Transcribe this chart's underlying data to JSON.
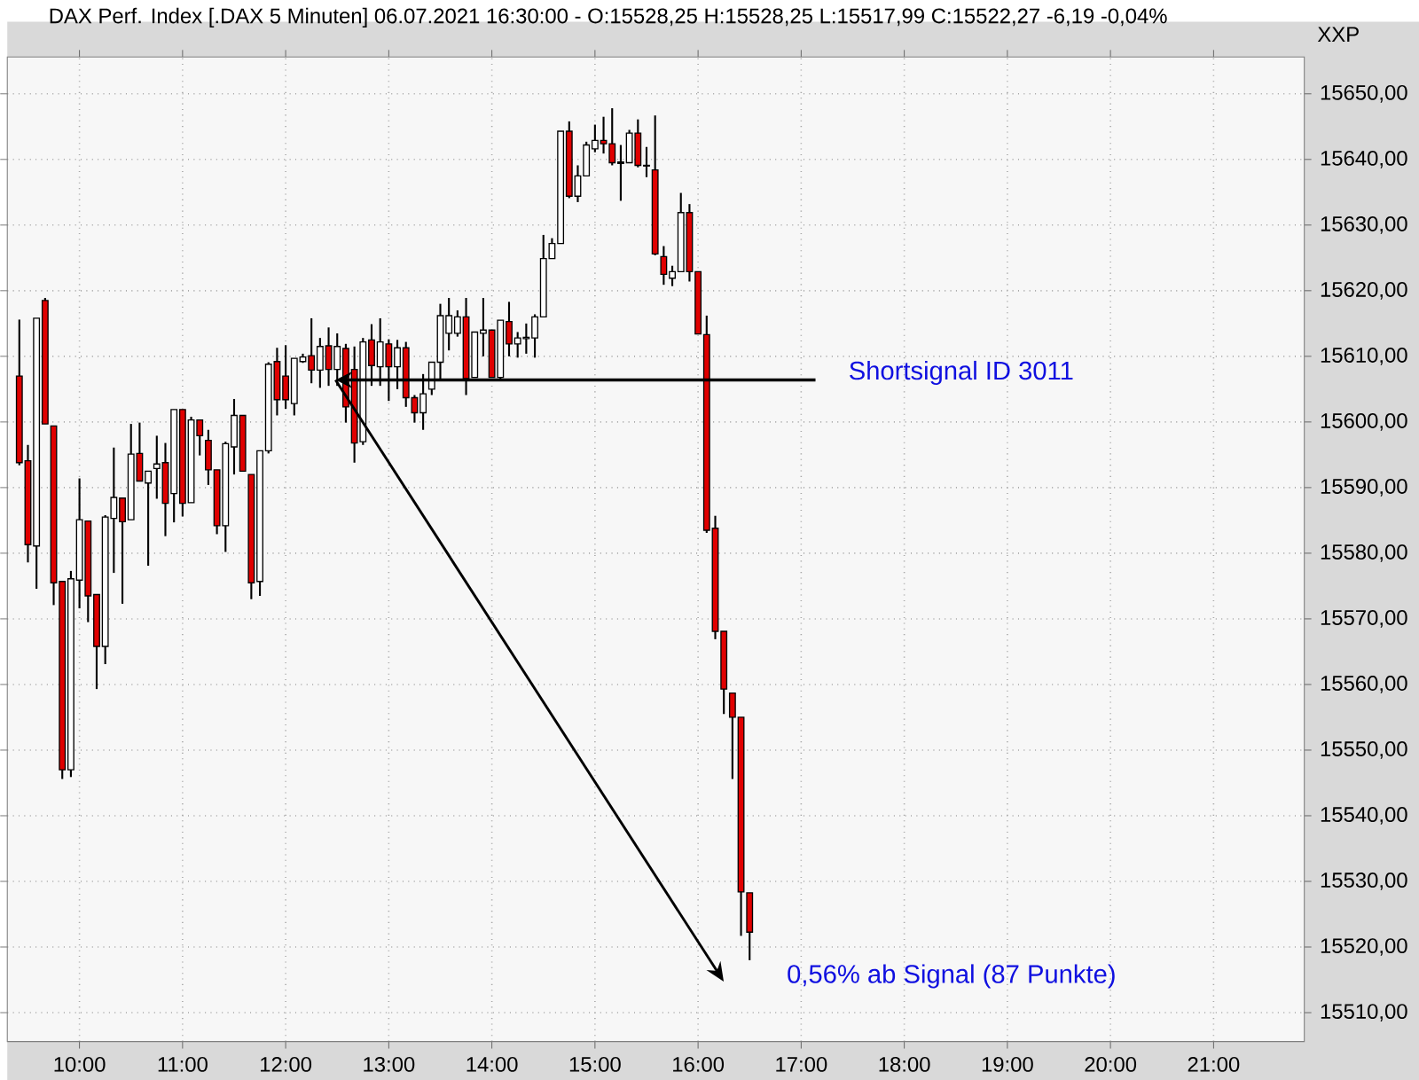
{
  "chart_data": {
    "type": "candlestick",
    "title": "DAX Perf. Index [.DAX  5 Minuten] 06.07.2021 16:30:00 - O:15528,25 H:15528,25 L:15517,99 C:15522,27 -6,19 -0,04%",
    "x": [
      9.4167,
      9.5,
      9.5833,
      9.6667,
      9.75,
      9.8333,
      9.9167,
      10.0,
      10.0833,
      10.1667,
      10.25,
      10.3333,
      10.4167,
      10.5,
      10.5833,
      10.6667,
      10.75,
      10.8333,
      10.9167,
      11.0,
      11.0833,
      11.1667,
      11.25,
      11.3333,
      11.4167,
      11.5,
      11.5833,
      11.6667,
      11.75,
      11.8333,
      11.9167,
      12.0,
      12.0833,
      12.1667,
      12.25,
      12.3333,
      12.4167,
      12.5,
      12.5833,
      12.6667,
      12.75,
      12.8333,
      12.9167,
      13.0,
      13.0833,
      13.1667,
      13.25,
      13.3333,
      13.4167,
      13.5,
      13.5833,
      13.6667,
      13.75,
      13.8333,
      13.9167,
      14.0,
      14.0833,
      14.1667,
      14.25,
      14.3333,
      14.4167,
      14.5,
      14.5833,
      14.6667,
      14.75,
      14.8333,
      14.9167,
      15.0,
      15.0833,
      15.1667,
      15.25,
      15.3333,
      15.4167,
      15.5,
      15.5833,
      15.6667,
      15.75,
      15.8333,
      15.9167,
      16.0,
      16.0833,
      16.1667,
      16.25,
      16.3333,
      16.4167,
      16.5
    ],
    "ohlc": [
      [
        15607.0,
        15615.6,
        15593.4,
        15593.8
      ],
      [
        15594.1,
        15596.5,
        15578.6,
        15581.3
      ],
      [
        15581.1,
        15615.8,
        15574.6,
        15615.8
      ],
      [
        15618.5,
        15618.9,
        15599.7,
        15599.7
      ],
      [
        15599.4,
        15599.4,
        15572.1,
        15575.5
      ],
      [
        15575.7,
        15575.7,
        15545.6,
        15547.0
      ],
      [
        15547.0,
        15577.3,
        15545.9,
        15576.1
      ],
      [
        15575.9,
        15591.4,
        15571.6,
        15585.1
      ],
      [
        15584.9,
        15584.9,
        15569.5,
        15573.5
      ],
      [
        15573.7,
        15573.7,
        15559.3,
        15565.8
      ],
      [
        15565.8,
        15585.8,
        15563.1,
        15585.5
      ],
      [
        15585.3,
        15596.1,
        15577.0,
        15588.5
      ],
      [
        15588.4,
        15588.4,
        15572.3,
        15584.8
      ],
      [
        15585.1,
        15599.7,
        15585.1,
        15595.1
      ],
      [
        15595.2,
        15599.9,
        15591.0,
        15591.0
      ],
      [
        15590.7,
        15592.5,
        15578.1,
        15592.5
      ],
      [
        15592.9,
        15597.9,
        15588.3,
        15593.6
      ],
      [
        15593.8,
        15596.8,
        15582.6,
        15587.6
      ],
      [
        15589.1,
        15601.9,
        15584.7,
        15601.9
      ],
      [
        15601.9,
        15601.9,
        15585.6,
        15587.6
      ],
      [
        15587.7,
        15600.8,
        15587.7,
        15600.3
      ],
      [
        15600.3,
        15600.3,
        15594.9,
        15597.9
      ],
      [
        15597.2,
        15598.8,
        15590.4,
        15592.7
      ],
      [
        15592.7,
        15592.7,
        15582.9,
        15584.2
      ],
      [
        15584.2,
        15597.0,
        15580.2,
        15596.7
      ],
      [
        15596.2,
        15603.5,
        15592.0,
        15601.0
      ],
      [
        15601.0,
        15601.0,
        15592.5,
        15592.5
      ],
      [
        15592.0,
        15592.0,
        15573.0,
        15575.5
      ],
      [
        15575.7,
        15595.6,
        15573.5,
        15595.6
      ],
      [
        15595.6,
        15609.1,
        15595.2,
        15608.8
      ],
      [
        15609.2,
        15611.3,
        15601.0,
        15603.4
      ],
      [
        15607.0,
        15611.7,
        15602.0,
        15603.4
      ],
      [
        15602.8,
        15609.7,
        15601.0,
        15609.7
      ],
      [
        15609.2,
        15610.4,
        15609.0,
        15609.9
      ],
      [
        15610.1,
        15615.8,
        15605.9,
        15607.9
      ],
      [
        15607.9,
        15612.8,
        15605.2,
        15611.5
      ],
      [
        15611.6,
        15614.4,
        15605.5,
        15608.0
      ],
      [
        15608.0,
        15613.5,
        15605.5,
        15611.5
      ],
      [
        15611.2,
        15611.9,
        15599.9,
        15602.3
      ],
      [
        15608.0,
        15611.5,
        15593.8,
        15596.8
      ],
      [
        15597.0,
        15612.8,
        15596.5,
        15612.2
      ],
      [
        15612.5,
        15614.9,
        15605.5,
        15608.6
      ],
      [
        15608.4,
        15615.8,
        15605.5,
        15612.2
      ],
      [
        15611.9,
        15612.6,
        15603.2,
        15608.4
      ],
      [
        15608.4,
        15612.5,
        15605.0,
        15611.3
      ],
      [
        15611.3,
        15612.2,
        15602.3,
        15603.7
      ],
      [
        15603.7,
        15604.1,
        15599.9,
        15601.4
      ],
      [
        15601.4,
        15607.3,
        15598.8,
        15604.3
      ],
      [
        15605.0,
        15609.1,
        15604.1,
        15609.1
      ],
      [
        15609.1,
        15618.0,
        15606.4,
        15616.2
      ],
      [
        15613.5,
        15618.9,
        15610.9,
        15616.2
      ],
      [
        15613.5,
        15617.0,
        15613.0,
        15616.0
      ],
      [
        15616.0,
        15618.9,
        15604.1,
        15606.6
      ],
      [
        15606.8,
        15613.7,
        15606.8,
        15613.7
      ],
      [
        15613.5,
        15618.9,
        15610.0,
        15614.0
      ],
      [
        15614.0,
        15614.0,
        15606.8,
        15606.8
      ],
      [
        15606.8,
        15615.5,
        15606.4,
        15615.5
      ],
      [
        15615.3,
        15618.3,
        15610.0,
        15611.9
      ],
      [
        15611.9,
        15613.7,
        15609.8,
        15612.8
      ],
      [
        15612.7,
        15615.0,
        15610.4,
        15612.9
      ],
      [
        15612.8,
        15616.4,
        15609.8,
        15616.0
      ],
      [
        15616.0,
        15628.5,
        15616.0,
        15624.9
      ],
      [
        15624.9,
        15628.0,
        15624.9,
        15627.2
      ],
      [
        15627.2,
        15644.3,
        15627.2,
        15644.3
      ],
      [
        15644.3,
        15645.8,
        15634.1,
        15634.4
      ],
      [
        15634.4,
        15639.1,
        15633.5,
        15637.5
      ],
      [
        15637.5,
        15642.7,
        15637.5,
        15642.2
      ],
      [
        15641.6,
        15645.3,
        15641.1,
        15642.9
      ],
      [
        15642.9,
        15646.5,
        15640.9,
        15642.4
      ],
      [
        15642.4,
        15647.8,
        15639.1,
        15639.5
      ],
      [
        15639.4,
        15642.2,
        15633.7,
        15639.6
      ],
      [
        15639.5,
        15644.5,
        15639.5,
        15644.0
      ],
      [
        15644.0,
        15646.1,
        15638.8,
        15639.1
      ],
      [
        15639.1,
        15641.9,
        15637.3,
        15639.0
      ],
      [
        15638.4,
        15646.7,
        15625.4,
        15625.6
      ],
      [
        15625.2,
        15626.8,
        15620.9,
        15622.5
      ],
      [
        15621.9,
        15623.8,
        15620.7,
        15622.9
      ],
      [
        15622.9,
        15634.9,
        15622.9,
        15631.9
      ],
      [
        15631.9,
        15633.2,
        15621.4,
        15622.9
      ],
      [
        15622.9,
        15622.9,
        15613.4,
        15613.4
      ],
      [
        15613.3,
        15616.2,
        15583.1,
        15583.5
      ],
      [
        15583.8,
        15585.7,
        15566.9,
        15568.1
      ],
      [
        15568.1,
        15568.1,
        15555.5,
        15559.3
      ],
      [
        15558.7,
        15558.7,
        15545.6,
        15555.0
      ],
      [
        15555.0,
        15555.0,
        15521.7,
        15528.4
      ],
      [
        15528.25,
        15528.25,
        15517.99,
        15522.27
      ]
    ],
    "xlim": [
      9.3,
      21.88
    ],
    "ylim": [
      15505.6,
      15655.6
    ],
    "xticks": [
      {
        "value": 10,
        "label": "10:00"
      },
      {
        "value": 11,
        "label": "11:00"
      },
      {
        "value": 12,
        "label": "12:00"
      },
      {
        "value": 13,
        "label": "13:00"
      },
      {
        "value": 14,
        "label": "14:00"
      },
      {
        "value": 15,
        "label": "15:00"
      },
      {
        "value": 16,
        "label": "16:00"
      },
      {
        "value": 17,
        "label": "17:00"
      },
      {
        "value": 18,
        "label": "18:00"
      },
      {
        "value": 19,
        "label": "19:00"
      },
      {
        "value": 20,
        "label": "20:00"
      },
      {
        "value": 21,
        "label": "21:00"
      }
    ],
    "yticks": [
      {
        "value": 15510,
        "label": "15510,00"
      },
      {
        "value": 15520,
        "label": "15520,00"
      },
      {
        "value": 15530,
        "label": "15530,00"
      },
      {
        "value": 15540,
        "label": "15540,00"
      },
      {
        "value": 15550,
        "label": "15550,00"
      },
      {
        "value": 15560,
        "label": "15560,00"
      },
      {
        "value": 15570,
        "label": "15570,00"
      },
      {
        "value": 15580,
        "label": "15580,00"
      },
      {
        "value": 15590,
        "label": "15590,00"
      },
      {
        "value": 15600,
        "label": "15600,00"
      },
      {
        "value": 15610,
        "label": "15610,00"
      },
      {
        "value": 15620,
        "label": "15620,00"
      },
      {
        "value": 15630,
        "label": "15630,00"
      },
      {
        "value": 15640,
        "label": "15640,00"
      },
      {
        "value": 15650,
        "label": "15650,00"
      }
    ],
    "grid": true,
    "annotations": [
      "Shortsignal ID 3011",
      "0,56% ab Signal (87 Punkte)",
      "XXP"
    ]
  }
}
